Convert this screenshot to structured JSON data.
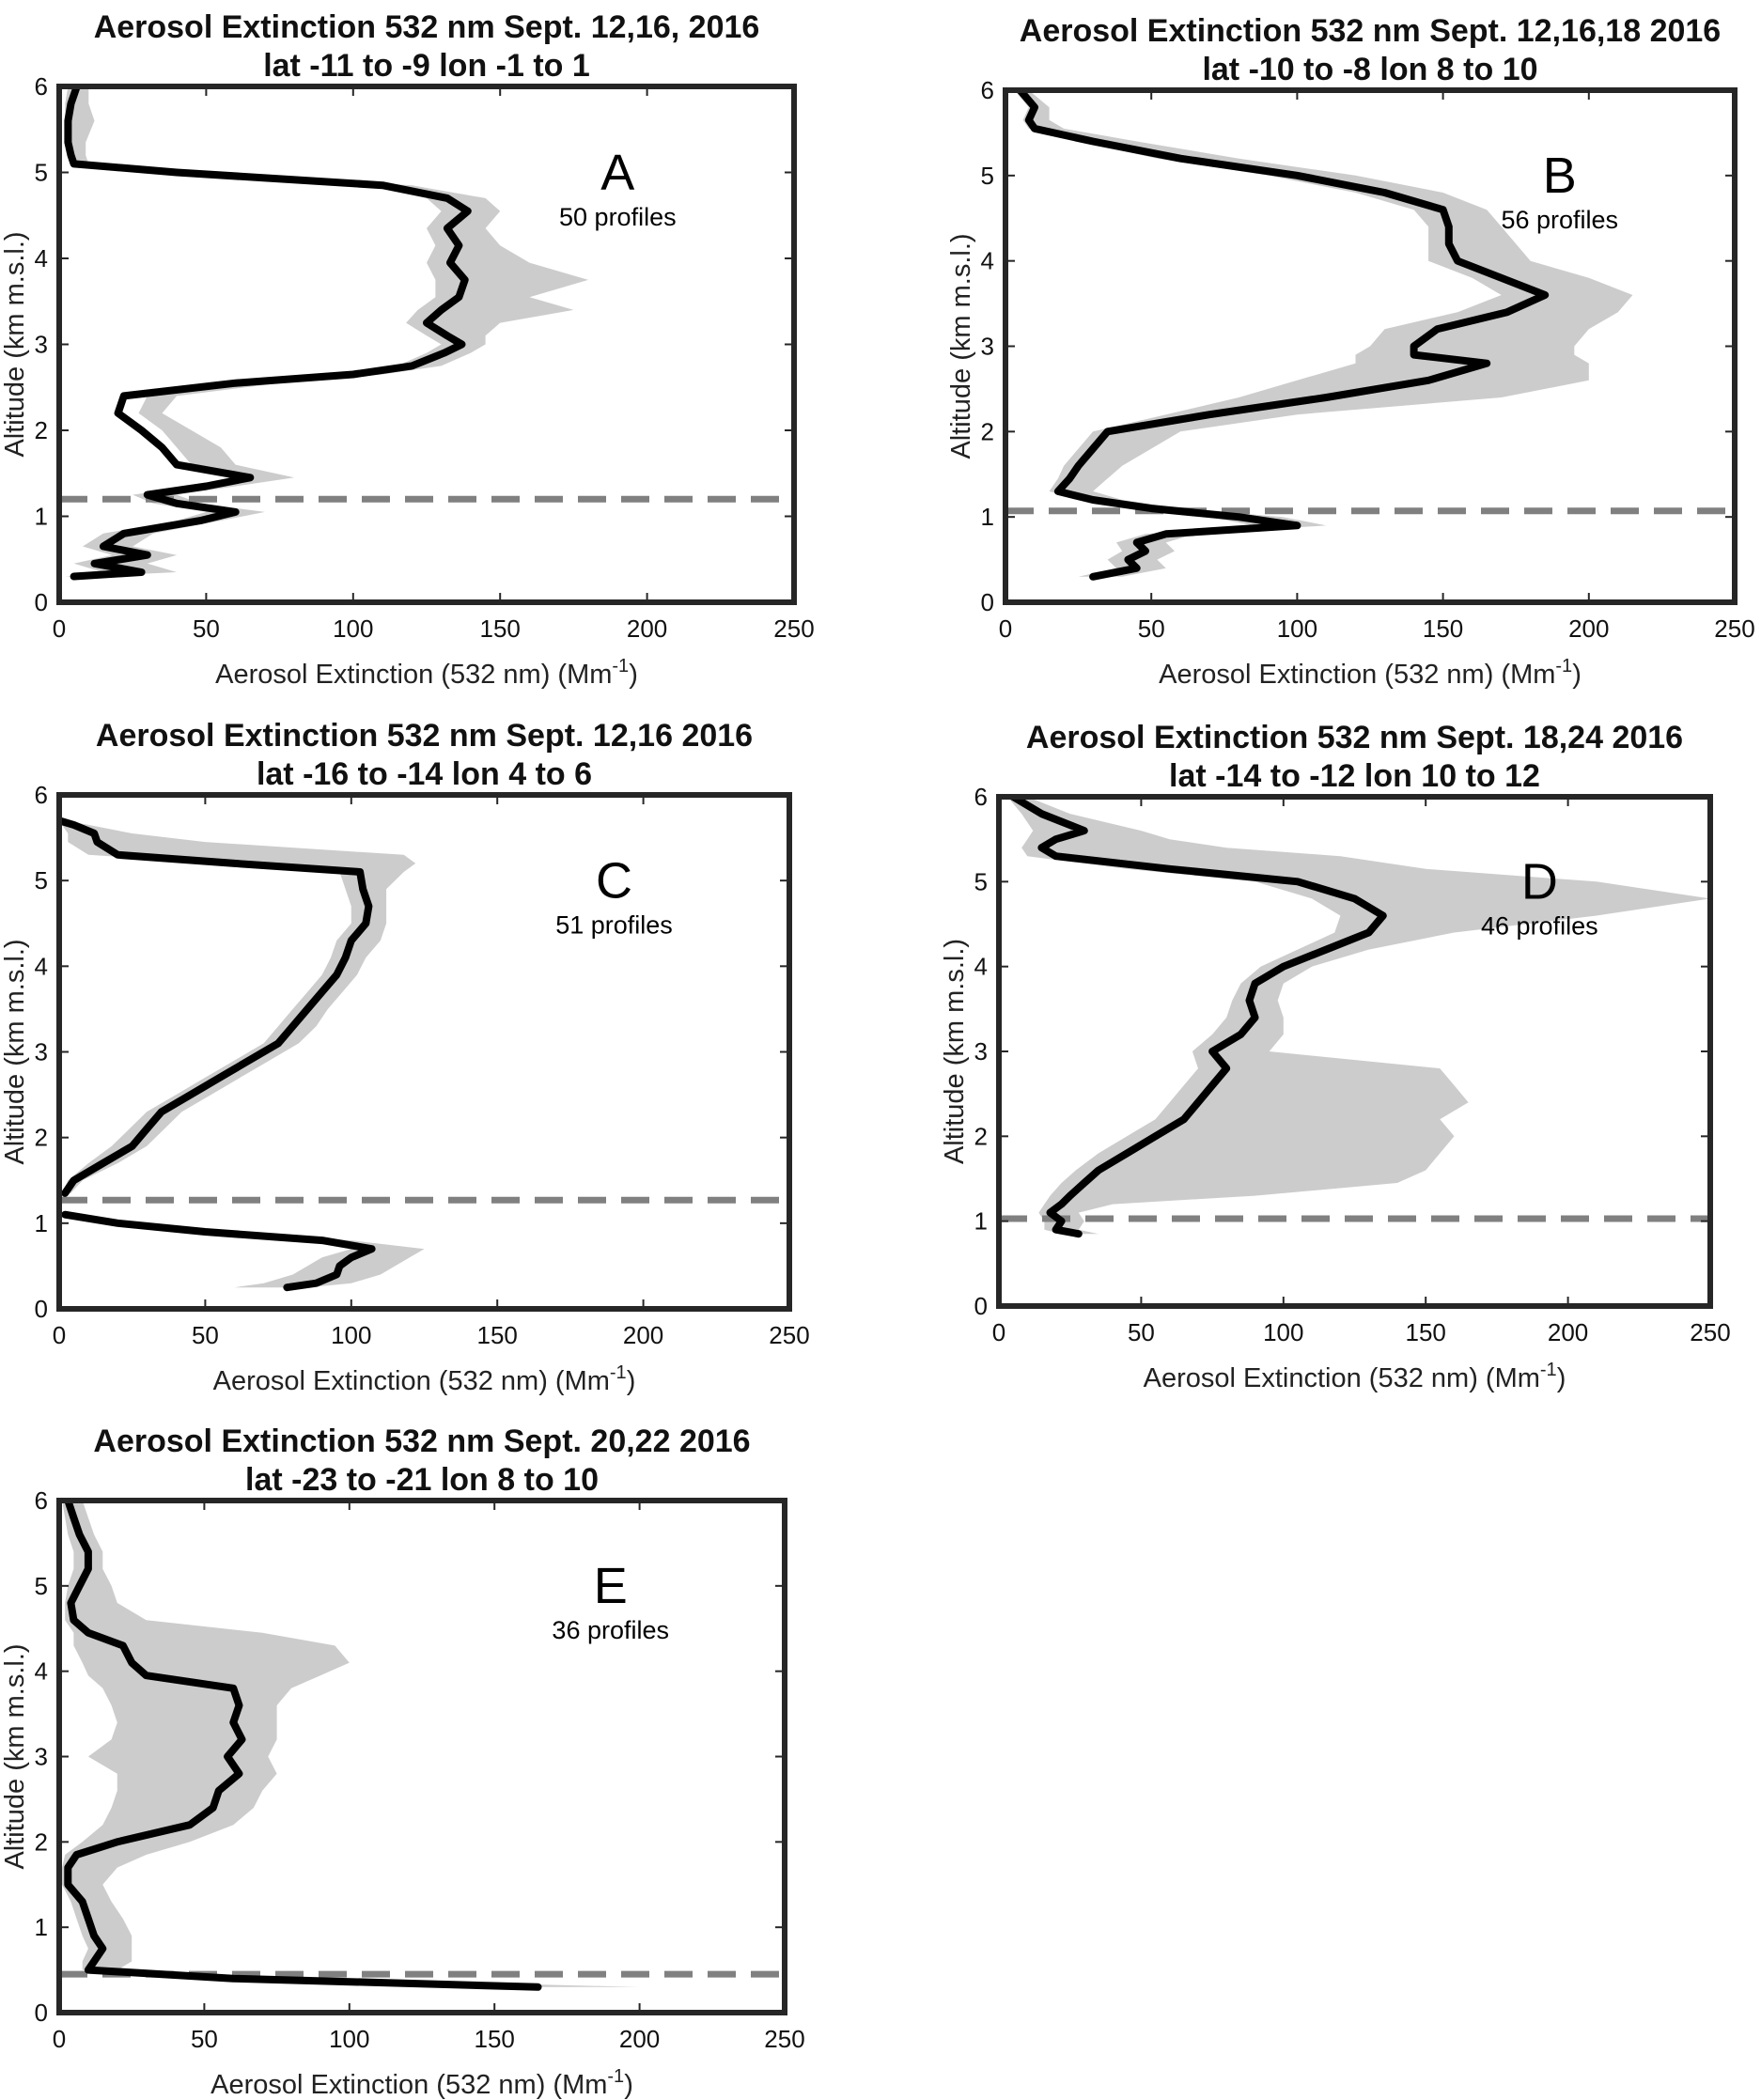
{
  "chart_data": [
    {
      "type": "line",
      "title": "Aerosol Extinction 532 nm Sept. 12,16, 2016",
      "subtitle": "lat -11 to -9 lon -1 to 1",
      "panel_label": "A",
      "annotation": "50 profiles",
      "xlabel": "Aerosol Extinction (532 nm) (Mm",
      "xlabel_sup": "-1",
      "xlabel_end": ")",
      "ylabel": "Altitude (km m.s.l.)",
      "xlim": [
        0,
        250
      ],
      "ylim": [
        0,
        6
      ],
      "xticks": [
        "0",
        "50",
        "100",
        "150",
        "200",
        "250"
      ],
      "yticks": [
        "0",
        "1",
        "2",
        "3",
        "4",
        "5",
        "6"
      ],
      "dashed_line_altitude": 1.2,
      "series": [
        {
          "y": [
            0.3,
            0.35,
            0.45,
            0.55,
            0.65,
            0.8,
            0.95,
            1.05,
            1.15,
            1.25,
            1.35,
            1.45,
            1.6,
            1.8,
            2.0,
            2.2,
            2.4,
            2.55,
            2.65,
            2.75,
            2.9,
            3.0,
            3.1,
            3.25,
            3.4,
            3.55,
            3.75,
            3.95,
            4.15,
            4.35,
            4.55,
            4.7,
            4.85,
            5.0,
            5.1,
            5.2,
            5.35,
            5.6,
            5.8,
            6.0
          ],
          "x": [
            5,
            28,
            12,
            30,
            15,
            22,
            48,
            60,
            40,
            30,
            50,
            65,
            40,
            35,
            28,
            20,
            22,
            60,
            100,
            120,
            131,
            137,
            132,
            125,
            130,
            136,
            138,
            133,
            136,
            132,
            139,
            132,
            110,
            40,
            5,
            4,
            3,
            3,
            4,
            6
          ],
          "lower": [
            2,
            15,
            5,
            18,
            8,
            15,
            40,
            50,
            32,
            25,
            45,
            60,
            45,
            40,
            35,
            27,
            30,
            60,
            95,
            115,
            125,
            130,
            125,
            118,
            122,
            128,
            128,
            125,
            128,
            125,
            130,
            125,
            105,
            35,
            4,
            3,
            2,
            2,
            2,
            3
          ],
          "upper": [
            10,
            40,
            30,
            40,
            25,
            32,
            55,
            70,
            48,
            40,
            60,
            80,
            60,
            55,
            45,
            35,
            40,
            75,
            110,
            130,
            140,
            145,
            145,
            150,
            175,
            160,
            180,
            160,
            150,
            145,
            150,
            145,
            120,
            50,
            10,
            9,
            9,
            12,
            10,
            10
          ]
        }
      ]
    },
    {
      "type": "line",
      "title": "Aerosol Extinction 532 nm Sept. 12,16,18 2016",
      "subtitle": "lat -10 to -8 lon 8 to 10",
      "panel_label": "B",
      "annotation": "56 profiles",
      "xlabel": "Aerosol Extinction (532 nm) (Mm",
      "xlabel_sup": "-1",
      "xlabel_end": ")",
      "ylabel": "Altitude (km m.s.l.)",
      "xlim": [
        0,
        250
      ],
      "ylim": [
        0,
        6
      ],
      "xticks": [
        "0",
        "50",
        "100",
        "150",
        "200",
        "250"
      ],
      "yticks": [
        "0",
        "1",
        "2",
        "3",
        "4",
        "5",
        "6"
      ],
      "dashed_line_altitude": 1.07,
      "series": [
        {
          "y": [
            0.3,
            0.4,
            0.5,
            0.6,
            0.7,
            0.8,
            0.9,
            1.0,
            1.1,
            1.2,
            1.3,
            1.45,
            1.6,
            1.8,
            2.0,
            2.2,
            2.4,
            2.6,
            2.8,
            2.9,
            3.0,
            3.2,
            3.4,
            3.6,
            3.8,
            4.0,
            4.2,
            4.4,
            4.6,
            4.8,
            5.0,
            5.2,
            5.4,
            5.55,
            5.65,
            5.8,
            6.0
          ],
          "x": [
            30,
            45,
            42,
            48,
            45,
            55,
            100,
            80,
            50,
            30,
            18,
            22,
            25,
            30,
            35,
            70,
            110,
            145,
            165,
            140,
            140,
            148,
            172,
            185,
            170,
            155,
            152,
            152,
            150,
            130,
            100,
            60,
            30,
            10,
            8,
            10,
            5
          ],
          "lower": [
            25,
            38,
            35,
            40,
            38,
            48,
            85,
            70,
            45,
            25,
            15,
            18,
            20,
            25,
            30,
            55,
            80,
            100,
            120,
            120,
            125,
            130,
            155,
            170,
            160,
            145,
            145,
            145,
            140,
            120,
            90,
            52,
            25,
            8,
            6,
            8,
            3
          ],
          "upper": [
            40,
            55,
            52,
            58,
            55,
            65,
            110,
            95,
            60,
            40,
            30,
            35,
            40,
            50,
            60,
            100,
            170,
            200,
            200,
            195,
            195,
            200,
            210,
            215,
            200,
            180,
            175,
            170,
            165,
            150,
            120,
            80,
            45,
            20,
            15,
            15,
            8
          ]
        }
      ]
    },
    {
      "type": "line",
      "title": "Aerosol Extinction 532 nm Sept. 12,16 2016",
      "subtitle": "lat -16 to -14 lon 4 to 6",
      "panel_label": "C",
      "annotation": "51 profiles",
      "xlabel": "Aerosol Extinction (532 nm) (Mm",
      "xlabel_sup": "-1",
      "xlabel_end": ")",
      "ylabel": "Altitude (km m.s.l.)",
      "xlim": [
        0,
        250
      ],
      "ylim": [
        0,
        6
      ],
      "xticks": [
        "0",
        "50",
        "100",
        "150",
        "200",
        "250"
      ],
      "yticks": [
        "0",
        "1",
        "2",
        "3",
        "4",
        "5",
        "6"
      ],
      "dashed_line_altitude": 1.27,
      "series": [
        {
          "y": [
            0.25,
            0.3,
            0.4,
            0.5,
            0.6,
            0.7,
            0.8,
            0.9,
            1.0,
            1.1
          ],
          "x": [
            78,
            88,
            95,
            96,
            100,
            107,
            90,
            50,
            20,
            2
          ],
          "lower": [
            60,
            70,
            80,
            85,
            90,
            100,
            85,
            45,
            15,
            1
          ],
          "upper": [
            85,
            100,
            110,
            115,
            120,
            125,
            100,
            60,
            25,
            4
          ]
        },
        {
          "y": [
            1.35,
            1.5,
            1.7,
            1.9,
            2.1,
            2.3,
            2.5,
            2.7,
            2.9,
            3.1,
            3.3,
            3.5,
            3.7,
            3.9,
            4.1,
            4.3,
            4.5,
            4.7,
            4.9,
            5.1,
            5.2,
            5.3,
            5.45,
            5.55,
            5.65,
            5.7
          ],
          "x": [
            2,
            5,
            15,
            25,
            30,
            35,
            45,
            55,
            65,
            75,
            80,
            85,
            90,
            95,
            98,
            100,
            105,
            106,
            104,
            103,
            60,
            20,
            13,
            12,
            5,
            0
          ],
          "lower": [
            1,
            3,
            10,
            18,
            24,
            30,
            40,
            50,
            60,
            70,
            75,
            80,
            85,
            90,
            93,
            95,
            100,
            100,
            98,
            96,
            55,
            10,
            3,
            3,
            1,
            0
          ],
          "upper": [
            4,
            8,
            20,
            30,
            36,
            42,
            52,
            62,
            72,
            82,
            88,
            92,
            97,
            102,
            105,
            110,
            112,
            112,
            112,
            118,
            122,
            118,
            50,
            25,
            10,
            2
          ]
        }
      ]
    },
    {
      "type": "line",
      "title": "Aerosol Extinction 532 nm Sept. 18,24 2016",
      "subtitle": "lat -14 to -12 lon 10 to 12",
      "panel_label": "D",
      "annotation": "46 profiles",
      "xlabel": "Aerosol Extinction (532 nm) (Mm",
      "xlabel_sup": "-1",
      "xlabel_end": ")",
      "ylabel": "Altitude (km m.s.l.)",
      "xlim": [
        0,
        250
      ],
      "ylim": [
        0,
        6
      ],
      "xticks": [
        "0",
        "50",
        "100",
        "150",
        "200",
        "250"
      ],
      "yticks": [
        "0",
        "1",
        "2",
        "3",
        "4",
        "5",
        "6"
      ],
      "dashed_line_altitude": 1.03,
      "series": [
        {
          "y": [
            0.85,
            0.9,
            1.0,
            1.1,
            1.2,
            1.3,
            1.45,
            1.6,
            1.8,
            2.0,
            2.2,
            2.4,
            2.6,
            2.8,
            3.0,
            3.2,
            3.4,
            3.6,
            3.8,
            4.0,
            4.2,
            4.4,
            4.6,
            4.8,
            5.0,
            5.15,
            5.3,
            5.4,
            5.5,
            5.6,
            5.8,
            6.0
          ],
          "x": [
            28,
            20,
            22,
            18,
            22,
            25,
            30,
            35,
            45,
            55,
            65,
            70,
            75,
            80,
            75,
            85,
            90,
            88,
            90,
            100,
            115,
            130,
            135,
            125,
            105,
            60,
            20,
            15,
            20,
            30,
            15,
            5
          ],
          "lower": [
            22,
            16,
            16,
            14,
            16,
            18,
            22,
            27,
            35,
            45,
            55,
            60,
            65,
            70,
            68,
            75,
            80,
            82,
            85,
            92,
            105,
            118,
            120,
            110,
            90,
            45,
            10,
            8,
            10,
            12,
            8,
            3
          ],
          "upper": [
            35,
            28,
            30,
            28,
            40,
            90,
            140,
            150,
            155,
            160,
            155,
            165,
            160,
            155,
            95,
            100,
            100,
            98,
            100,
            110,
            130,
            160,
            210,
            250,
            210,
            150,
            120,
            80,
            60,
            50,
            25,
            10
          ]
        }
      ]
    },
    {
      "type": "line",
      "title": "Aerosol Extinction 532 nm Sept. 20,22 2016",
      "subtitle": "lat -23 to -21 lon 8 to 10",
      "panel_label": "E",
      "annotation": "36 profiles",
      "xlabel": "Aerosol Extinction (532 nm) (Mm",
      "xlabel_sup": "-1",
      "xlabel_end": ")",
      "ylabel": "Altitude (km m.s.l.)",
      "xlim": [
        0,
        250
      ],
      "ylim": [
        0,
        6
      ],
      "xticks": [
        "0",
        "50",
        "100",
        "150",
        "200",
        "250"
      ],
      "yticks": [
        "0",
        "1",
        "2",
        "3",
        "4",
        "5",
        "6"
      ],
      "dashed_line_altitude": 0.45,
      "series": [
        {
          "y": [
            0.3,
            0.4,
            0.5,
            0.6,
            0.75,
            0.9,
            1.1,
            1.3,
            1.5,
            1.7,
            1.85,
            2.0,
            2.2,
            2.4,
            2.6,
            2.8,
            3.0,
            3.2,
            3.4,
            3.6,
            3.8,
            3.95,
            4.1,
            4.3,
            4.45,
            4.6,
            4.8,
            5.0,
            5.2,
            5.4,
            5.6,
            5.8,
            6.0
          ],
          "x": [
            165,
            60,
            10,
            12,
            15,
            12,
            10,
            8,
            3,
            3,
            6,
            20,
            45,
            53,
            55,
            62,
            58,
            63,
            60,
            62,
            60,
            30,
            25,
            22,
            10,
            5,
            4,
            7,
            10,
            10,
            7,
            5,
            3
          ],
          "lower": [
            160,
            55,
            8,
            8,
            10,
            8,
            6,
            4,
            1,
            1,
            2,
            8,
            15,
            18,
            20,
            20,
            10,
            18,
            20,
            18,
            15,
            10,
            8,
            5,
            5,
            2,
            2,
            3,
            5,
            5,
            3,
            2,
            1
          ],
          "upper": [
            200,
            80,
            20,
            25,
            25,
            25,
            22,
            18,
            15,
            20,
            30,
            45,
            60,
            67,
            70,
            75,
            72,
            75,
            75,
            75,
            80,
            90,
            100,
            95,
            70,
            30,
            20,
            18,
            15,
            15,
            12,
            10,
            8
          ]
        }
      ]
    }
  ]
}
